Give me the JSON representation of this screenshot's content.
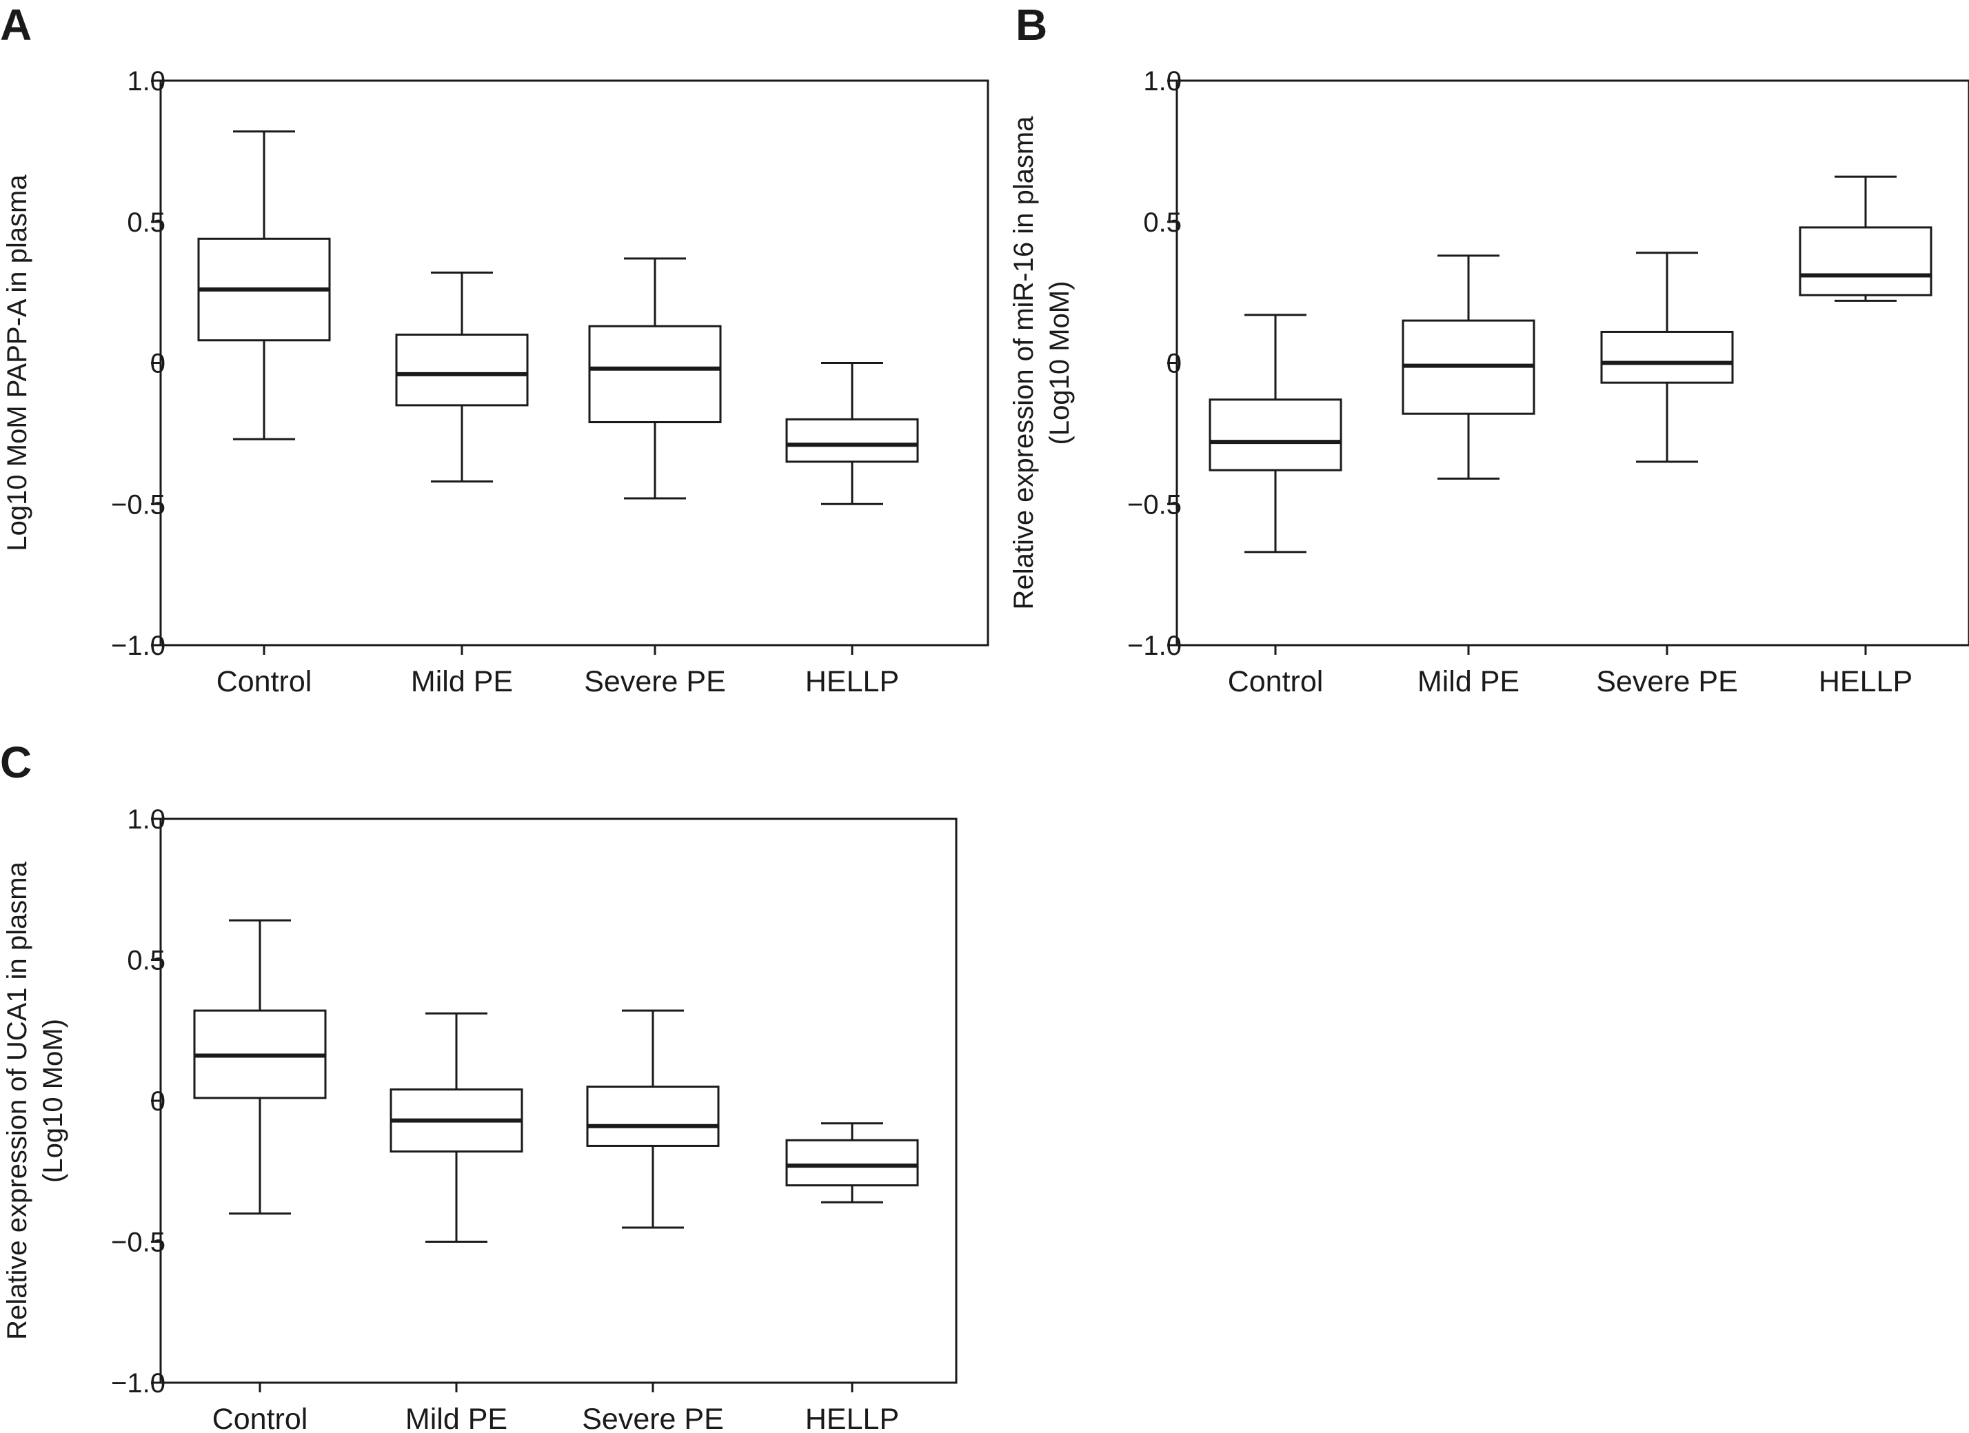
{
  "chart_data": [
    {
      "type": "box",
      "panel": "A",
      "ylabel_lines": [
        "Log10 MoM PAPP-A in plasma"
      ],
      "categories": [
        "Control",
        "Mild PE",
        "Severe PE",
        "HELLP"
      ],
      "ylim": [
        -1.0,
        1.0
      ],
      "yticks": [
        1.0,
        0.5,
        0,
        -0.5,
        -1.0
      ],
      "ytick_labels": [
        "1.0",
        "0.5",
        "0",
        "−0.5",
        "−1.0"
      ],
      "boxes": [
        {
          "min": -0.27,
          "q1": 0.08,
          "median": 0.26,
          "q3": 0.44,
          "max": 0.82
        },
        {
          "min": -0.42,
          "q1": -0.15,
          "median": -0.04,
          "q3": 0.1,
          "max": 0.32
        },
        {
          "min": -0.48,
          "q1": -0.21,
          "median": -0.02,
          "q3": 0.13,
          "max": 0.37
        },
        {
          "min": -0.5,
          "q1": -0.35,
          "median": -0.29,
          "q3": -0.2,
          "max": 0.0
        }
      ]
    },
    {
      "type": "box",
      "panel": "B",
      "ylabel_lines": [
        "Relative expression of miR-16 in plasma",
        "(Log10 MoM)"
      ],
      "categories": [
        "Control",
        "Mild PE",
        "Severe PE",
        "HELLP"
      ],
      "ylim": [
        -1.0,
        1.0
      ],
      "yticks": [
        1.0,
        0.5,
        0,
        -0.5,
        -1.0
      ],
      "ytick_labels": [
        "1.0",
        "0.5",
        "0",
        "−0.5",
        "−1.0"
      ],
      "boxes": [
        {
          "min": -0.67,
          "q1": -0.38,
          "median": -0.28,
          "q3": -0.13,
          "max": 0.17
        },
        {
          "min": -0.41,
          "q1": -0.18,
          "median": -0.01,
          "q3": 0.15,
          "max": 0.38
        },
        {
          "min": -0.35,
          "q1": -0.07,
          "median": 0.0,
          "q3": 0.11,
          "max": 0.39
        },
        {
          "min": 0.22,
          "q1": 0.24,
          "median": 0.31,
          "q3": 0.48,
          "max": 0.66
        }
      ]
    },
    {
      "type": "box",
      "panel": "C",
      "ylabel_lines": [
        "Relative expression of UCA1 in plasma",
        "(Log10 MoM)"
      ],
      "categories": [
        "Control",
        "Mild PE",
        "Severe PE",
        "HELLP"
      ],
      "ylim": [
        -1.0,
        1.0
      ],
      "yticks": [
        1.0,
        0.5,
        0,
        -0.5,
        -1.0
      ],
      "ytick_labels": [
        "1.0",
        "0.5",
        "0",
        "−0.5",
        "−1.0"
      ],
      "boxes": [
        {
          "min": -0.4,
          "q1": 0.01,
          "median": 0.16,
          "q3": 0.32,
          "max": 0.64
        },
        {
          "min": -0.5,
          "q1": -0.18,
          "median": -0.07,
          "q3": 0.04,
          "max": 0.31
        },
        {
          "min": -0.45,
          "q1": -0.16,
          "median": -0.09,
          "q3": 0.05,
          "max": 0.32
        },
        {
          "min": -0.36,
          "q1": -0.3,
          "median": -0.23,
          "q3": -0.14,
          "max": -0.08
        }
      ]
    }
  ]
}
